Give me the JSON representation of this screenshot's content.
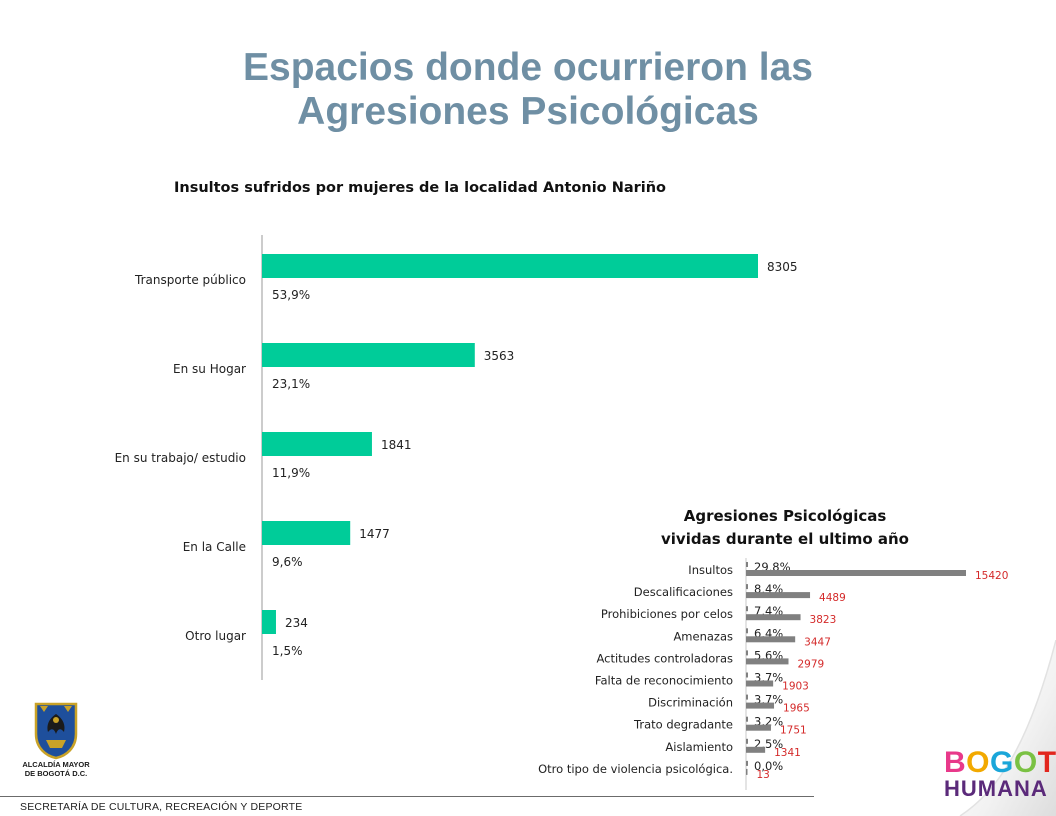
{
  "slide": {
    "title_line1": "Espacios donde ocurrieron las",
    "title_line2": "Agresiones Psicológicas"
  },
  "footer": {
    "text": "SECRETARÍA DE CULTURA, RECREACIÓN Y DEPORTE",
    "logo_left_line1": "ALCALDÍA MAYOR",
    "logo_left_line2": "DE BOGOTÁ D.C.",
    "logo_right_line1": "BOGOTÁ",
    "logo_right_line2": "HUMANA"
  },
  "chart_data": [
    {
      "type": "bar",
      "orientation": "horizontal",
      "title": "Insultos sufridos por mujeres de la localidad Antonio Nariño",
      "categories": [
        "Transporte público",
        "En su Hogar",
        "En su trabajo/ estudio",
        "En la Calle",
        "Otro lugar"
      ],
      "values": [
        8305,
        3563,
        1841,
        1477,
        234
      ],
      "percent_labels": [
        "53,9%",
        "23,1%",
        "11,9%",
        "9,6%",
        "1,5%"
      ],
      "bar_color": "#00cc99",
      "grid": false,
      "legend": "none"
    },
    {
      "type": "bar",
      "orientation": "horizontal",
      "title_line1": "Agresiones Psicológicas",
      "title_line2": "vividas durante el ultimo año",
      "categories": [
        "Insultos",
        "Descalificaciones",
        "Prohibiciones por celos",
        "Amenazas",
        "Actitudes controladoras",
        "Falta de reconocimiento",
        "Discriminación",
        "Trato degradante",
        "Aislamiento",
        "Otro tipo de violencia psicológica."
      ],
      "values": [
        15420,
        4489,
        3823,
        3447,
        2979,
        1903,
        1965,
        1751,
        1341,
        13
      ],
      "value_labels": [
        "15420",
        "4489",
        "3823",
        "3447",
        "2979",
        "1903",
        "1965",
        "1751",
        "1341",
        "13"
      ],
      "percent_labels": [
        "29,8%",
        "8,4%",
        "7,4%",
        "6,4%",
        "5,6%",
        "3,7%",
        "3,7%",
        "3,2%",
        "2,5%",
        "0,0%"
      ],
      "bar_color": "#808080",
      "value_label_color": "#d42a2a",
      "grid": false,
      "legend": "none"
    }
  ]
}
